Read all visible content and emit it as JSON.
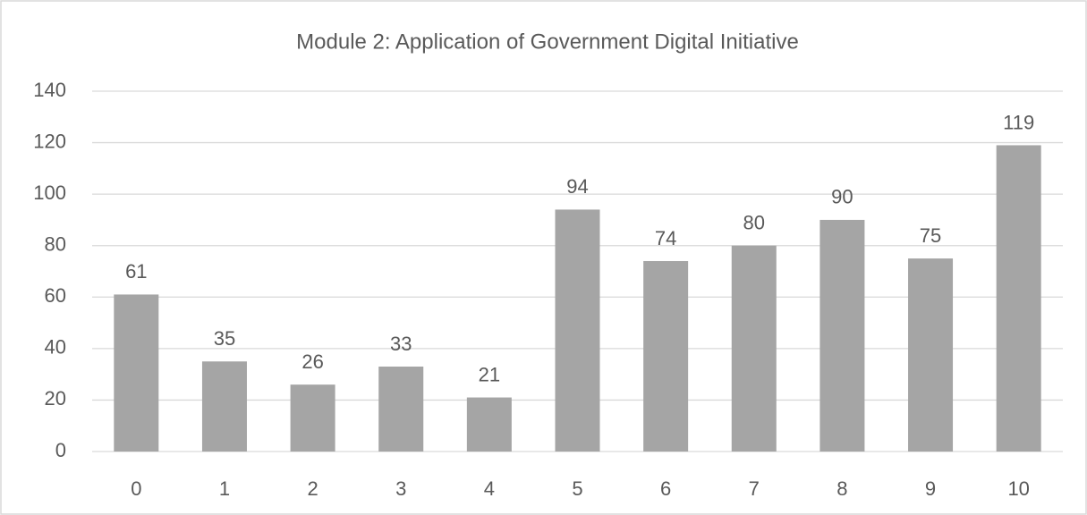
{
  "chart_data": {
    "type": "bar",
    "title": "Module 2: Application of Government Digital Initiative",
    "categories": [
      "0",
      "1",
      "2",
      "3",
      "4",
      "5",
      "6",
      "7",
      "8",
      "9",
      "10"
    ],
    "values": [
      61,
      35,
      26,
      33,
      21,
      94,
      74,
      80,
      90,
      75,
      119
    ],
    "color": "#a5a5a5",
    "ylim": [
      0,
      140
    ],
    "yticks": [
      0,
      20,
      40,
      60,
      80,
      100,
      120,
      140
    ],
    "grid": true,
    "data_labels": true
  }
}
